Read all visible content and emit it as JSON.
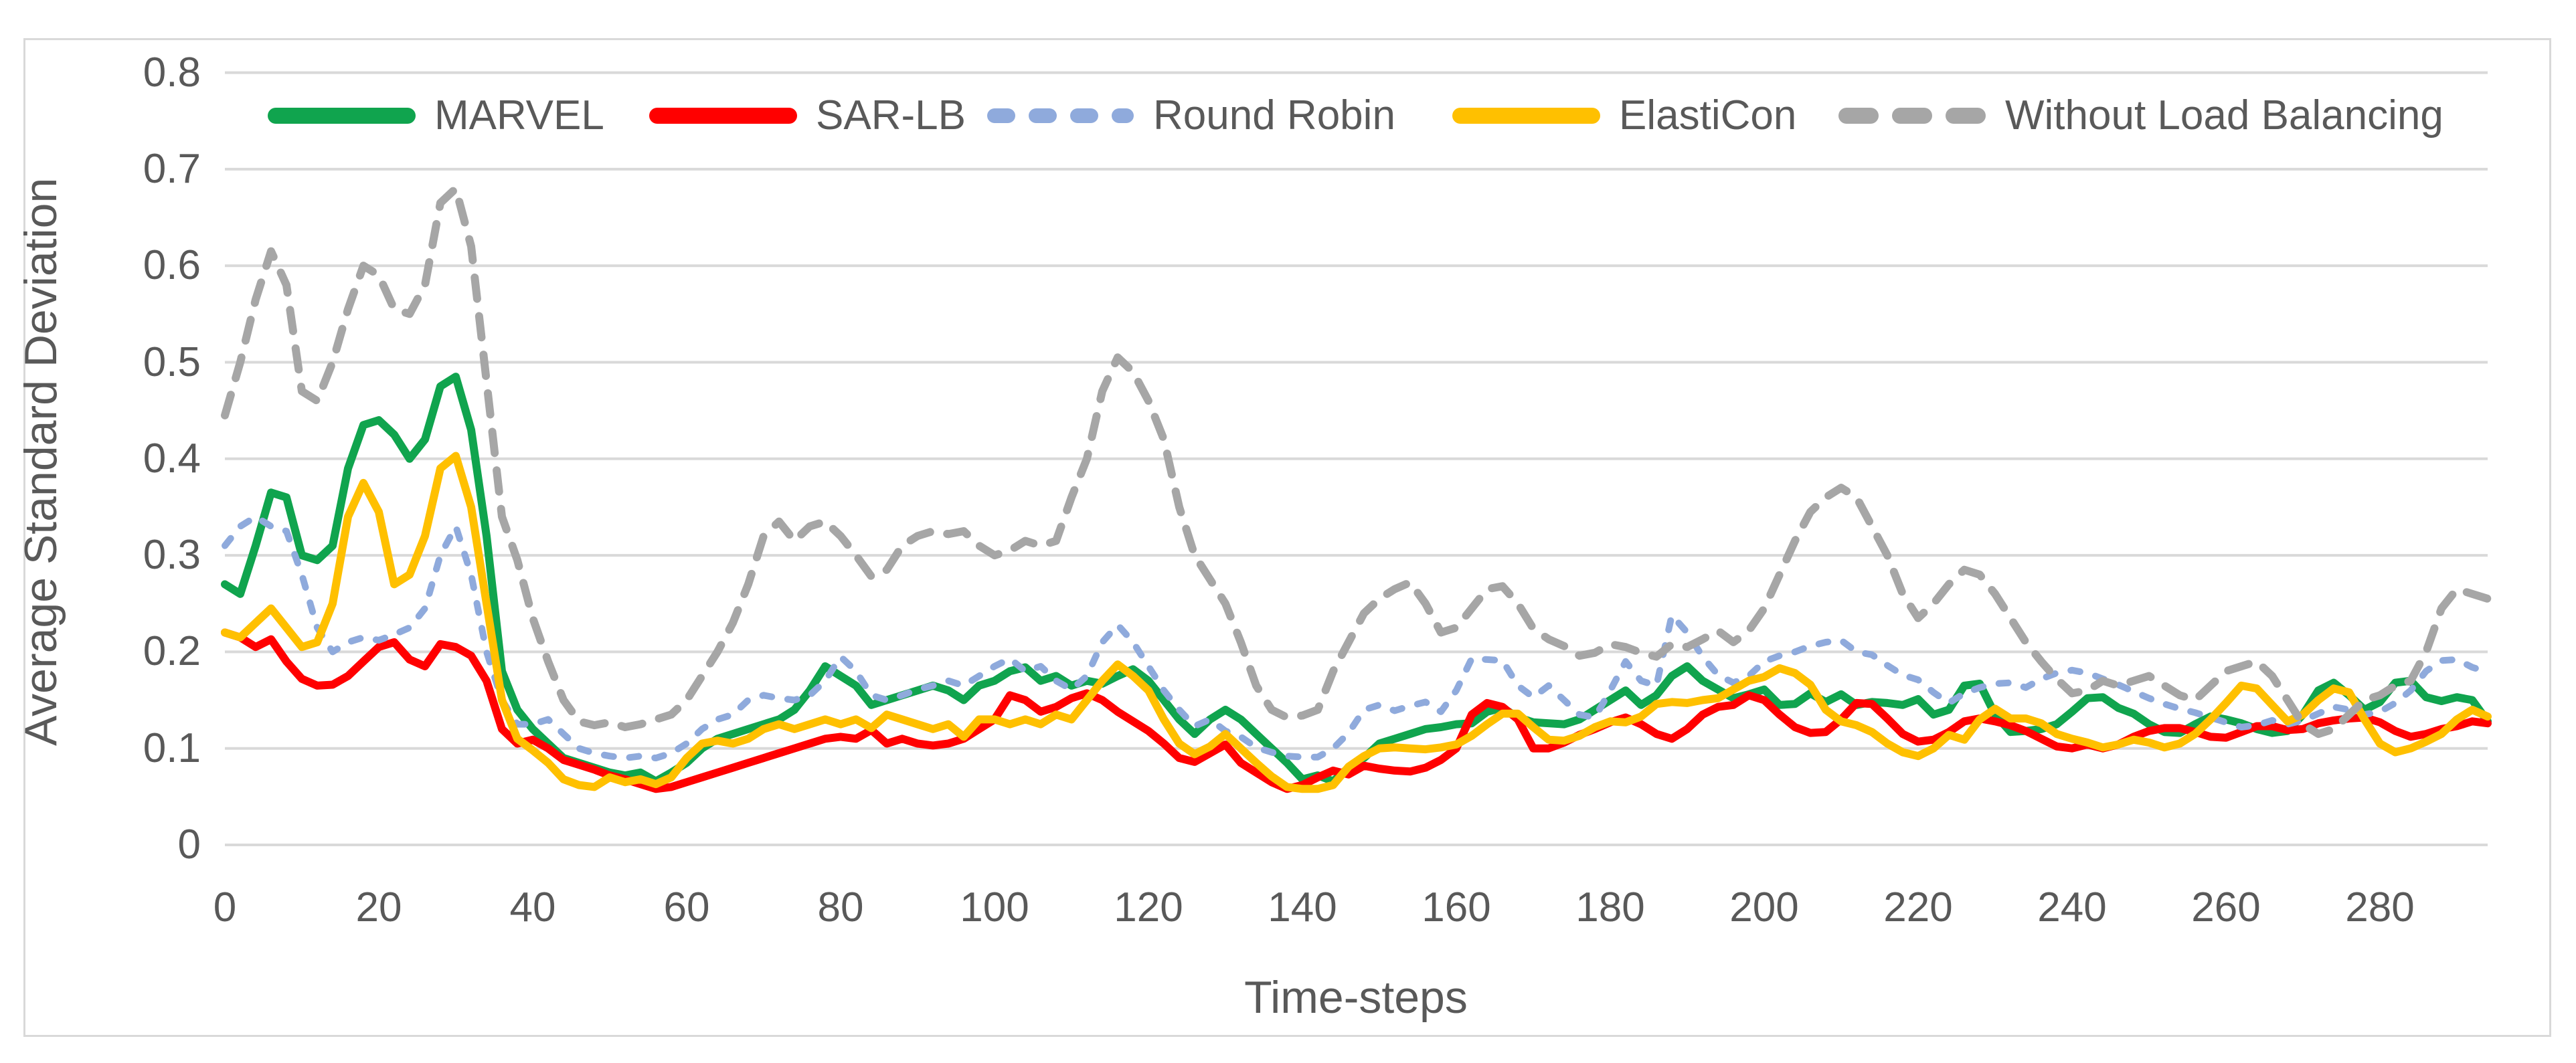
{
  "figure": {
    "border_color": "#d9d9d9",
    "background": "#ffffff",
    "text_color": "#595959",
    "gridline_color": "#d9d9d9"
  },
  "chart_data": {
    "type": "line",
    "title": "",
    "xlabel": "Time-steps",
    "ylabel": "Average Standard Deviation",
    "xlim": [
      0,
      294
    ],
    "ylim": [
      0,
      0.8
    ],
    "grid": "horizontal",
    "legend_position": "top",
    "x_start": 0,
    "x_step": 2,
    "x_ticks": [
      {
        "label": "0",
        "t": 0
      },
      {
        "label": "20",
        "t": 20
      },
      {
        "label": "40",
        "t": 40
      },
      {
        "label": "60",
        "t": 60
      },
      {
        "label": "80",
        "t": 80
      },
      {
        "label": "100",
        "t": 100
      },
      {
        "label": "120",
        "t": 120
      },
      {
        "label": "140",
        "t": 140
      },
      {
        "label": "160",
        "t": 160
      },
      {
        "label": "180",
        "t": 180
      },
      {
        "label": "200",
        "t": 200
      },
      {
        "label": "220",
        "t": 220
      },
      {
        "label": "240",
        "t": 240
      },
      {
        "label": "260",
        "t": 260
      },
      {
        "label": "280",
        "t": 280
      }
    ],
    "y_ticks": [
      {
        "label": "0.8",
        "v": 0.8
      },
      {
        "label": "0.7",
        "v": 0.7
      },
      {
        "label": "0.6",
        "v": 0.6
      },
      {
        "label": "0.5",
        "v": 0.5
      },
      {
        "label": "0.4",
        "v": 0.4
      },
      {
        "label": "0.3",
        "v": 0.3
      },
      {
        "label": "0.2",
        "v": 0.2
      },
      {
        "label": "0.1",
        "v": 0.1
      },
      {
        "label": "0",
        "v": 0
      }
    ],
    "series": [
      {
        "name": "MARVEL",
        "color": "#10A44E",
        "style": "solid",
        "width": 12,
        "dash": "none",
        "legend_dash": "none",
        "values": [
          0.27,
          0.26,
          0.31,
          0.365,
          0.36,
          0.3,
          0.295,
          0.31,
          0.39,
          0.435,
          0.44,
          0.425,
          0.4,
          0.42,
          0.475,
          0.485,
          0.43,
          0.32,
          0.18,
          0.14,
          0.12,
          0.105,
          0.09,
          0.085,
          0.08,
          0.075,
          0.072,
          0.075,
          0.066,
          0.075,
          0.085,
          0.1,
          0.11,
          0.115,
          0.12,
          0.125,
          0.13,
          0.14,
          0.16,
          0.185,
          0.175,
          0.165,
          0.145,
          0.15,
          0.155,
          0.16,
          0.165,
          0.16,
          0.15,
          0.165,
          0.17,
          0.18,
          0.184,
          0.17,
          0.175,
          0.165,
          0.17,
          0.167,
          0.175,
          0.182,
          0.17,
          0.15,
          0.13,
          0.115,
          0.13,
          0.14,
          0.13,
          0.115,
          0.1,
          0.085,
          0.068,
          0.072,
          0.066,
          0.08,
          0.09,
          0.105,
          0.11,
          0.115,
          0.12,
          0.122,
          0.125,
          0.126,
          0.138,
          0.142,
          0.132,
          0.127,
          0.126,
          0.125,
          0.13,
          0.14,
          0.15,
          0.16,
          0.145,
          0.155,
          0.175,
          0.185,
          0.17,
          0.161,
          0.152,
          0.156,
          0.161,
          0.145,
          0.146,
          0.157,
          0.148,
          0.156,
          0.145,
          0.148,
          0.147,
          0.145,
          0.151,
          0.135,
          0.14,
          0.165,
          0.167,
          0.135,
          0.117,
          0.118,
          0.12,
          0.125,
          0.138,
          0.152,
          0.153,
          0.142,
          0.136,
          0.125,
          0.117,
          0.116,
          0.125,
          0.133,
          0.13,
          0.126,
          0.12,
          0.116,
          0.118,
          0.135,
          0.16,
          0.168,
          0.155,
          0.14,
          0.148,
          0.168,
          0.17,
          0.153,
          0.149,
          0.153,
          0.15,
          0.128
        ]
      },
      {
        "name": "SAR-LB",
        "color": "#FF0000",
        "style": "solid",
        "width": 12,
        "dash": "none",
        "legend_dash": "none",
        "values": [
          0.22,
          0.215,
          0.205,
          0.213,
          0.19,
          0.172,
          0.165,
          0.166,
          0.175,
          0.19,
          0.205,
          0.21,
          0.192,
          0.185,
          0.208,
          0.205,
          0.196,
          0.17,
          0.12,
          0.105,
          0.109,
          0.1,
          0.088,
          0.083,
          0.078,
          0.072,
          0.068,
          0.063,
          0.058,
          0.06,
          0.065,
          0.07,
          0.075,
          0.08,
          0.085,
          0.09,
          0.095,
          0.1,
          0.105,
          0.11,
          0.112,
          0.11,
          0.119,
          0.105,
          0.11,
          0.105,
          0.103,
          0.105,
          0.11,
          0.12,
          0.13,
          0.155,
          0.15,
          0.138,
          0.143,
          0.152,
          0.157,
          0.15,
          0.138,
          0.128,
          0.118,
          0.105,
          0.09,
          0.086,
          0.095,
          0.104,
          0.085,
          0.075,
          0.065,
          0.058,
          0.062,
          0.07,
          0.077,
          0.073,
          0.082,
          0.079,
          0.077,
          0.076,
          0.08,
          0.088,
          0.1,
          0.135,
          0.147,
          0.143,
          0.13,
          0.1,
          0.1,
          0.106,
          0.114,
          0.12,
          0.127,
          0.132,
          0.125,
          0.115,
          0.11,
          0.12,
          0.135,
          0.143,
          0.145,
          0.155,
          0.15,
          0.135,
          0.122,
          0.116,
          0.117,
          0.13,
          0.147,
          0.146,
          0.131,
          0.115,
          0.107,
          0.109,
          0.117,
          0.128,
          0.131,
          0.128,
          0.124,
          0.118,
          0.11,
          0.102,
          0.1,
          0.104,
          0.1,
          0.104,
          0.112,
          0.118,
          0.121,
          0.121,
          0.117,
          0.112,
          0.111,
          0.117,
          0.123,
          0.123,
          0.119,
          0.12,
          0.126,
          0.129,
          0.131,
          0.132,
          0.127,
          0.118,
          0.112,
          0.115,
          0.12,
          0.123,
          0.128,
          0.126
        ]
      },
      {
        "name": "Round Robin",
        "color": "#8FAADC",
        "style": "dashed",
        "width": 10,
        "dash": "14 24",
        "legend_dash": "20 42",
        "values": [
          0.31,
          0.33,
          0.34,
          0.33,
          0.325,
          0.28,
          0.225,
          0.2,
          0.21,
          0.215,
          0.212,
          0.218,
          0.225,
          0.245,
          0.3,
          0.33,
          0.28,
          0.2,
          0.15,
          0.125,
          0.125,
          0.13,
          0.115,
          0.1,
          0.095,
          0.092,
          0.09,
          0.092,
          0.09,
          0.095,
          0.105,
          0.12,
          0.13,
          0.135,
          0.15,
          0.155,
          0.152,
          0.15,
          0.155,
          0.17,
          0.195,
          0.18,
          0.155,
          0.15,
          0.155,
          0.161,
          0.165,
          0.17,
          0.165,
          0.175,
          0.185,
          0.193,
          0.18,
          0.185,
          0.17,
          0.161,
          0.175,
          0.21,
          0.228,
          0.21,
          0.185,
          0.16,
          0.14,
          0.123,
          0.13,
          0.118,
          0.112,
          0.101,
          0.096,
          0.092,
          0.091,
          0.091,
          0.1,
          0.116,
          0.14,
          0.145,
          0.139,
          0.144,
          0.148,
          0.138,
          0.16,
          0.193,
          0.192,
          0.191,
          0.165,
          0.153,
          0.165,
          0.15,
          0.135,
          0.132,
          0.16,
          0.19,
          0.17,
          0.165,
          0.238,
          0.22,
          0.195,
          0.176,
          0.168,
          0.175,
          0.19,
          0.196,
          0.2,
          0.206,
          0.21,
          0.212,
          0.2,
          0.197,
          0.186,
          0.176,
          0.171,
          0.158,
          0.147,
          0.157,
          0.163,
          0.167,
          0.168,
          0.163,
          0.172,
          0.178,
          0.181,
          0.178,
          0.172,
          0.166,
          0.159,
          0.152,
          0.146,
          0.141,
          0.137,
          0.132,
          0.127,
          0.122,
          0.124,
          0.129,
          0.125,
          0.129,
          0.136,
          0.143,
          0.14,
          0.135,
          0.138,
          0.147,
          0.16,
          0.18,
          0.191,
          0.192,
          0.184,
          0.179
        ]
      },
      {
        "name": "ElastiCon",
        "color": "#FFC000",
        "style": "solid",
        "width": 12,
        "dash": "none",
        "legend_dash": "none",
        "values": [
          0.22,
          0.215,
          0.23,
          0.245,
          0.225,
          0.205,
          0.21,
          0.25,
          0.34,
          0.375,
          0.345,
          0.27,
          0.28,
          0.32,
          0.39,
          0.403,
          0.35,
          0.25,
          0.15,
          0.11,
          0.098,
          0.085,
          0.068,
          0.062,
          0.06,
          0.07,
          0.065,
          0.068,
          0.063,
          0.07,
          0.09,
          0.105,
          0.108,
          0.105,
          0.11,
          0.12,
          0.125,
          0.12,
          0.125,
          0.13,
          0.125,
          0.13,
          0.121,
          0.135,
          0.13,
          0.125,
          0.12,
          0.125,
          0.112,
          0.13,
          0.13,
          0.125,
          0.13,
          0.125,
          0.135,
          0.13,
          0.15,
          0.17,
          0.187,
          0.175,
          0.16,
          0.13,
          0.105,
          0.094,
          0.102,
          0.115,
          0.1,
          0.085,
          0.071,
          0.06,
          0.058,
          0.058,
          0.062,
          0.081,
          0.092,
          0.1,
          0.101,
          0.1,
          0.099,
          0.101,
          0.104,
          0.113,
          0.125,
          0.136,
          0.136,
          0.122,
          0.109,
          0.108,
          0.113,
          0.122,
          0.128,
          0.127,
          0.133,
          0.146,
          0.148,
          0.147,
          0.15,
          0.152,
          0.161,
          0.17,
          0.174,
          0.183,
          0.178,
          0.166,
          0.14,
          0.128,
          0.124,
          0.117,
          0.105,
          0.096,
          0.092,
          0.1,
          0.114,
          0.109,
          0.13,
          0.141,
          0.131,
          0.131,
          0.126,
          0.115,
          0.11,
          0.106,
          0.101,
          0.104,
          0.109,
          0.106,
          0.101,
          0.105,
          0.115,
          0.13,
          0.147,
          0.165,
          0.162,
          0.145,
          0.128,
          0.135,
          0.15,
          0.162,
          0.158,
          0.13,
          0.105,
          0.096,
          0.1,
          0.107,
          0.115,
          0.13,
          0.14,
          0.133
        ]
      },
      {
        "name": "Without Load Balancing",
        "color": "#A6A6A6",
        "style": "dashed",
        "width": 12,
        "dash": "32 26",
        "legend_dash": "36 44",
        "values": [
          0.445,
          0.5,
          0.565,
          0.615,
          0.58,
          0.47,
          0.46,
          0.5,
          0.555,
          0.6,
          0.59,
          0.555,
          0.55,
          0.58,
          0.665,
          0.68,
          0.62,
          0.48,
          0.34,
          0.295,
          0.235,
          0.19,
          0.15,
          0.128,
          0.124,
          0.127,
          0.122,
          0.125,
          0.13,
          0.135,
          0.15,
          0.175,
          0.2,
          0.23,
          0.27,
          0.32,
          0.335,
          0.315,
          0.33,
          0.335,
          0.32,
          0.3,
          0.278,
          0.285,
          0.31,
          0.32,
          0.325,
          0.322,
          0.325,
          0.31,
          0.3,
          0.305,
          0.315,
          0.31,
          0.315,
          0.36,
          0.4,
          0.47,
          0.505,
          0.49,
          0.46,
          0.42,
          0.35,
          0.3,
          0.275,
          0.25,
          0.21,
          0.165,
          0.14,
          0.132,
          0.134,
          0.14,
          0.18,
          0.21,
          0.24,
          0.255,
          0.265,
          0.272,
          0.25,
          0.22,
          0.225,
          0.245,
          0.265,
          0.268,
          0.25,
          0.224,
          0.213,
          0.206,
          0.196,
          0.199,
          0.208,
          0.205,
          0.199,
          0.195,
          0.208,
          0.205,
          0.213,
          0.222,
          0.21,
          0.222,
          0.245,
          0.28,
          0.315,
          0.345,
          0.36,
          0.37,
          0.36,
          0.33,
          0.3,
          0.26,
          0.235,
          0.25,
          0.27,
          0.285,
          0.28,
          0.26,
          0.235,
          0.21,
          0.19,
          0.172,
          0.157,
          0.16,
          0.17,
          0.165,
          0.17,
          0.175,
          0.165,
          0.155,
          0.15,
          0.165,
          0.18,
          0.185,
          0.19,
          0.175,
          0.15,
          0.125,
          0.115,
          0.12,
          0.135,
          0.15,
          0.155,
          0.165,
          0.17,
          0.2,
          0.245,
          0.265,
          0.26,
          0.255
        ]
      }
    ]
  }
}
